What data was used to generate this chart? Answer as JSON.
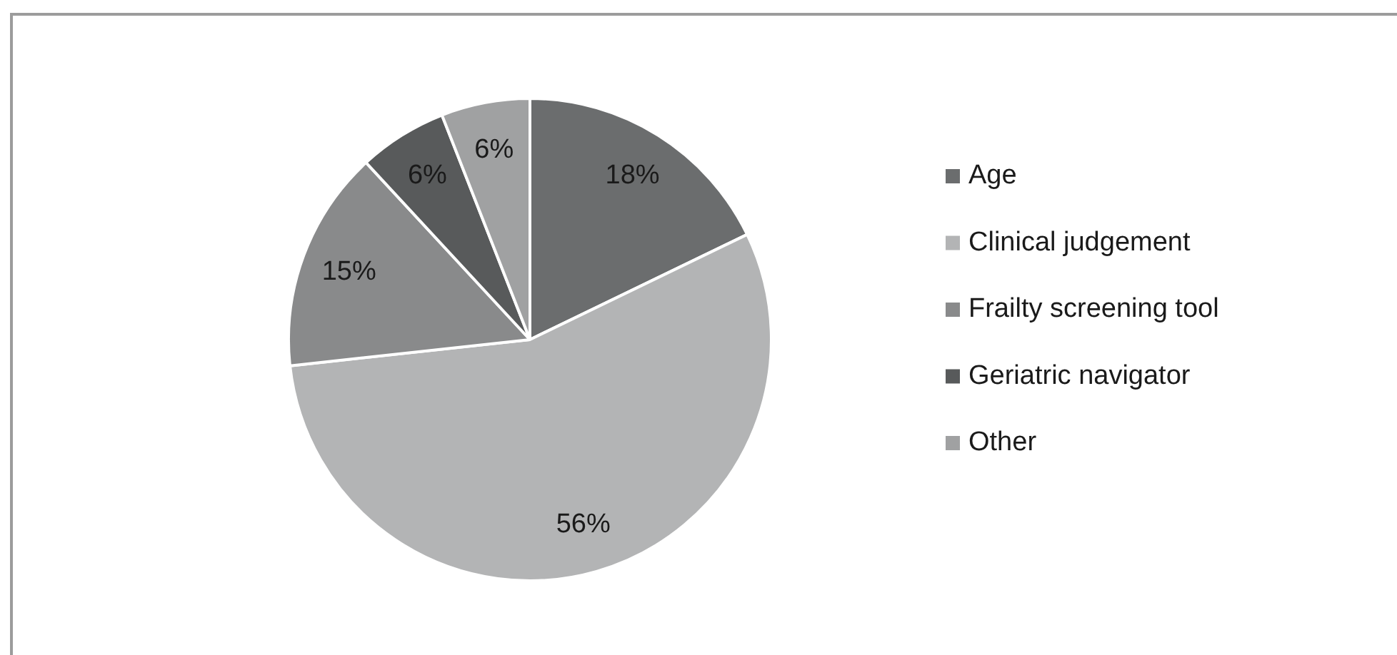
{
  "chart_data": {
    "type": "pie",
    "categories": [
      "Age",
      "Clinical judgement",
      "Frailty screening tool",
      "Geriatric navigator",
      "Other"
    ],
    "values": [
      18,
      56,
      15,
      6,
      6
    ],
    "colors": [
      "#6b6d6e",
      "#b3b4b5",
      "#898a8b",
      "#585a5b",
      "#a0a1a2"
    ],
    "value_labels": [
      "18%",
      "56%",
      "15%",
      "6%",
      "6%"
    ],
    "legend": "right"
  }
}
